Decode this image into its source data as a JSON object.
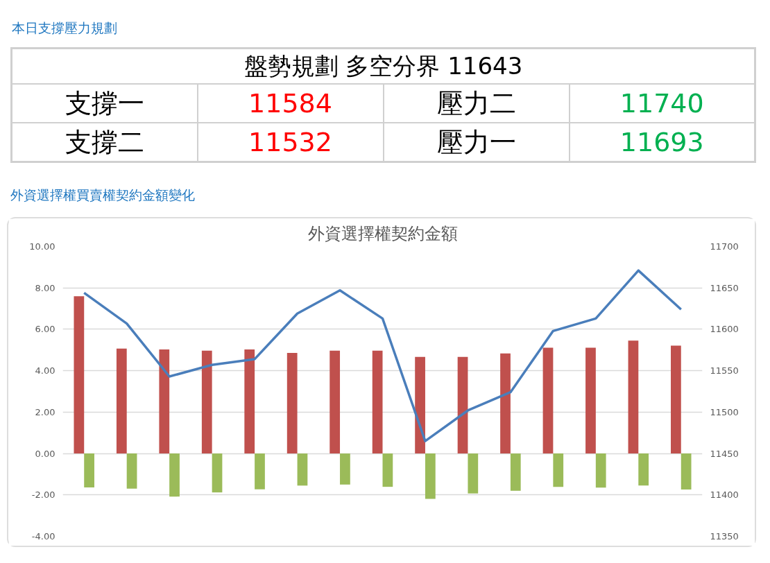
{
  "chart_data": [
    {
      "type": "other",
      "title": "本日支撐壓力規劃",
      "annotations": [
        "盤勢規劃 多空分界 11643",
        "支撐一",
        "11584",
        "壓力二",
        "11740",
        "支撐二",
        "11532",
        "壓力一",
        "11693"
      ],
      "colors": [
        "#000000",
        "#000000",
        "#ff0000",
        "#000000",
        "#00b050",
        "#000000",
        "#ff0000",
        "#000000",
        "#00b050"
      ]
    },
    {
      "type": "bar",
      "title": "外資選擇權買賣權契約金額變化",
      "subtitle": "外資選擇權契約金額",
      "categories": [
        null,
        null,
        null,
        null,
        null,
        null,
        null,
        null,
        null,
        null,
        null,
        null,
        null,
        null,
        null
      ],
      "series": [
        {
          "color": "#c0504d",
          "values": [
            7.6,
            5.07,
            5.03,
            4.97,
            5.03,
            4.86,
            4.97,
            4.97,
            4.67,
            4.67,
            4.83,
            5.11,
            5.11,
            5.45,
            5.21
          ]
        },
        {
          "color": "#9bbb59",
          "values": [
            -1.64,
            -1.7,
            -2.08,
            -1.88,
            -1.73,
            -1.55,
            -1.5,
            -1.61,
            -2.19,
            -1.93,
            -1.8,
            -1.61,
            -1.65,
            -1.55,
            -1.74
          ]
        },
        {
          "type": "line",
          "axis": "y2",
          "color": "#4a7ebb",
          "values": [
            11644,
            11607,
            11543,
            11557,
            11564,
            11619,
            11647,
            11613,
            11465,
            11502,
            11524,
            11598,
            11613,
            11671,
            11624
          ]
        }
      ],
      "ylim": [
        -4,
        10
      ],
      "yticks": [
        {
          "value": -4,
          "label": "-4.00"
        },
        {
          "value": -2,
          "label": "-2.00"
        },
        {
          "value": 0,
          "label": "0.00"
        },
        {
          "value": 2,
          "label": "2.00"
        },
        {
          "value": 4,
          "label": "4.00"
        },
        {
          "value": 6,
          "label": "6.00"
        },
        {
          "value": 8,
          "label": "8.00"
        },
        {
          "value": 10,
          "label": "10.00"
        }
      ],
      "y2lim": [
        11350,
        11700
      ],
      "y2ticks": [
        11350,
        11400,
        11450,
        11500,
        11550,
        11600,
        11650,
        11700
      ],
      "grid": "y"
    }
  ]
}
